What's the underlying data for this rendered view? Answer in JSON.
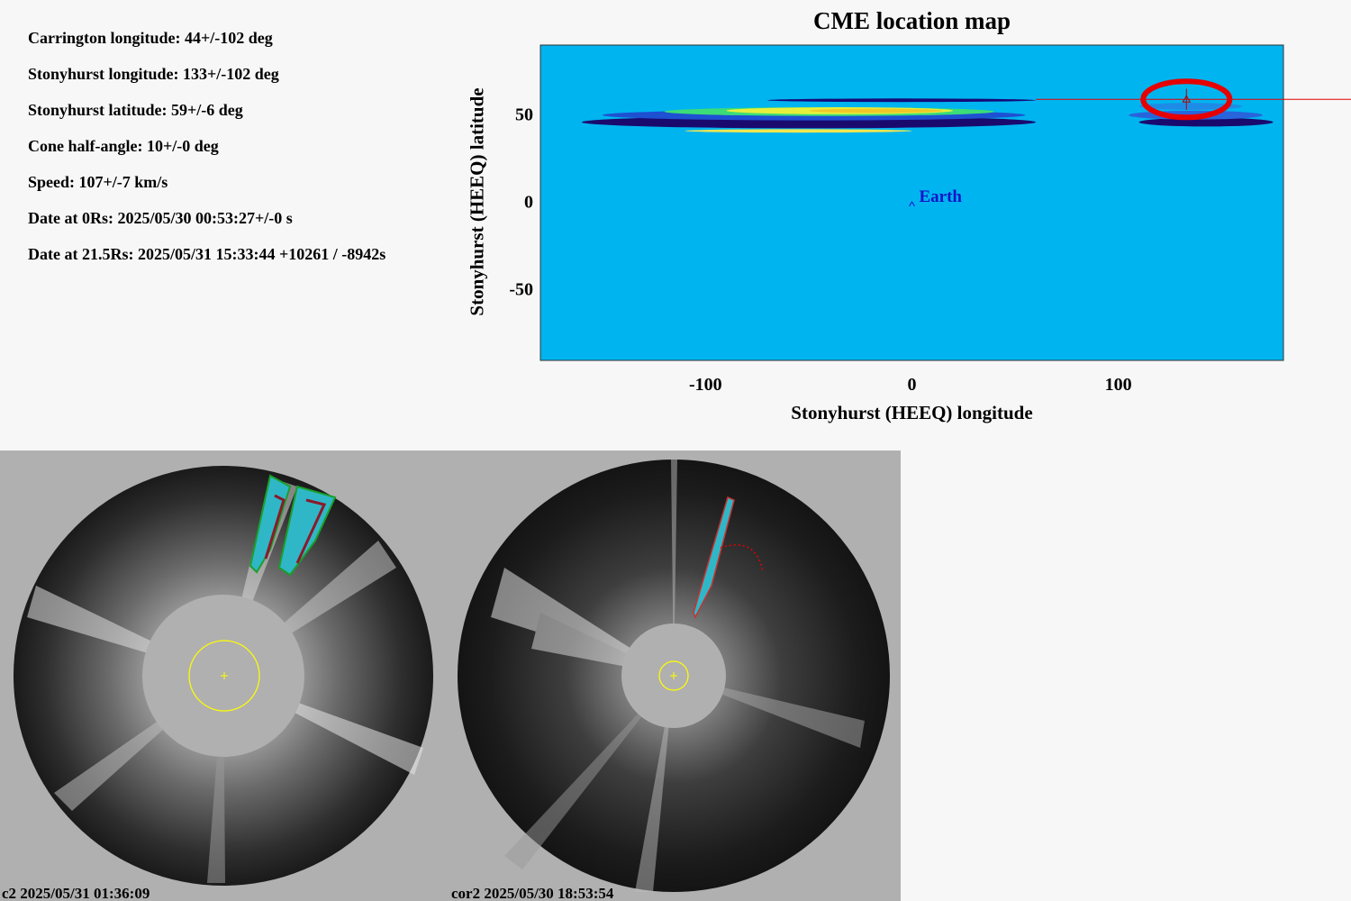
{
  "params": [
    "Carrington longitude: 44+/-102 deg",
    "Stonyhurst longitude: 133+/-102 deg",
    "Stonyhurst latitude: 59+/-6 deg",
    "Cone half-angle: 10+/-0 deg",
    "Speed: 107+/-7 km/s",
    "Date at 0Rs: 2025/05/30 00:53:27+/-0 s",
    "Date at 21.5Rs: 2025/05/31 15:33:44 +10261 / -8942s"
  ],
  "chart_data": {
    "type": "heatmap",
    "title": "CME location map",
    "xlabel": "Stonyhurst (HEEQ) longitude",
    "ylabel": "Stonyhurst (HEEQ) latitude",
    "xlim": [
      -180,
      180
    ],
    "ylim": [
      -90,
      90
    ],
    "xticks": [
      -100,
      0,
      100
    ],
    "yticks": [
      -50,
      0,
      50
    ],
    "background_color": "#00b4f0",
    "bands": [
      {
        "lon": [
          -160,
          60
        ],
        "lat_center": 46,
        "lat_halfwidth": 3.5,
        "color": "#1a0a6e"
      },
      {
        "lon": [
          -150,
          55
        ],
        "lat_center": 50,
        "lat_halfwidth": 3,
        "color": "#1e50d2"
      },
      {
        "lon": [
          -120,
          40
        ],
        "lat_center": 52,
        "lat_halfwidth": 2.5,
        "color": "#3cdc78"
      },
      {
        "lon": [
          -90,
          20
        ],
        "lat_center": 52.5,
        "lat_halfwidth": 2,
        "color": "#e6f03c"
      },
      {
        "lon": [
          -50,
          15
        ],
        "lat_center": 52.5,
        "lat_halfwidth": 1.2,
        "color": "#f0c828"
      },
      {
        "lon": [
          -110,
          0
        ],
        "lat_center": 41,
        "lat_halfwidth": 1,
        "color": "#f0e650"
      },
      {
        "lon": [
          -70,
          60
        ],
        "lat_center": 58.5,
        "lat_halfwidth": 1,
        "color": "#140a78"
      },
      {
        "lon": [
          110,
          175
        ],
        "lat_center": 46,
        "lat_halfwidth": 2.5,
        "color": "#1a0a6e"
      },
      {
        "lon": [
          105,
          170
        ],
        "lat_center": 50,
        "lat_halfwidth": 2.5,
        "color": "#2864dc"
      },
      {
        "lon": [
          110,
          160
        ],
        "lat_center": 55,
        "lat_halfwidth": 2,
        "color": "#1e8ce6"
      }
    ],
    "cme_location": {
      "lon": 133,
      "lat": 59,
      "lon_err": 102,
      "lat_err": 6
    },
    "earth": {
      "lon": 0,
      "lat": 0,
      "label": "Earth"
    },
    "marker_color": "#e60000",
    "earth_color": "#1414c8"
  },
  "coronagraphs": [
    {
      "label": "c2 2025/05/31 01:36:09"
    },
    {
      "label": "cor2 2025/05/30 18:53:54"
    }
  ]
}
